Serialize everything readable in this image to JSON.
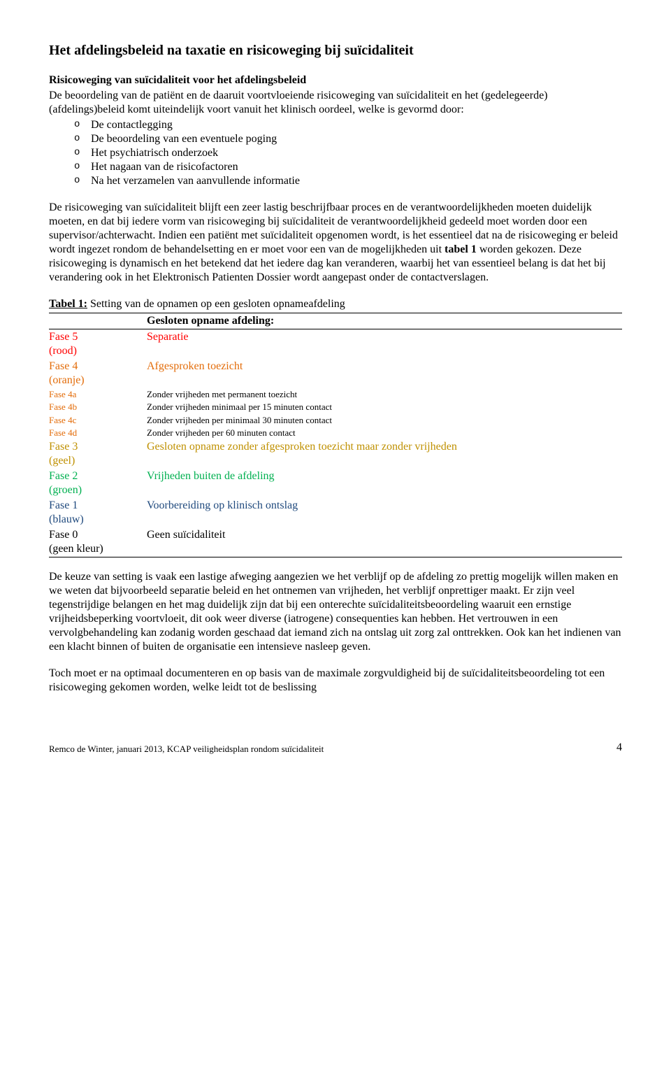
{
  "colors": {
    "red": "#ff0000",
    "orange": "#e36c09",
    "yellow": "#bf9000",
    "green": "#00b050",
    "blue": "#1f497d",
    "black": "#000000"
  },
  "title": "Het afdelingsbeleid na taxatie en risicoweging bij suïcidaliteit",
  "section1": {
    "heading": "Risicoweging van suïcidaliteit voor het afdelingsbeleid",
    "intro": "De beoordeling van de patiënt en de daaruit voortvloeiende risicoweging van suïcidaliteit en het (gedelegeerde) (afdelings)beleid komt uiteindelijk voort vanuit het klinisch oordeel, welke is gevormd door:",
    "bullets": [
      "De contactlegging",
      "De beoordeling van een eventuele poging",
      "Het psychiatrisch onderzoek",
      "Het nagaan van de risicofactoren",
      "Na het verzamelen van aanvullende informatie"
    ]
  },
  "para2_a": "De risicoweging van suïcidaliteit blijft een zeer lastig beschrijfbaar proces en de verantwoordelijkheden moeten duidelijk moeten, en dat bij iedere vorm van risicoweging bij suïcidaliteit de verantwoordelijkheid gedeeld moet worden door een supervisor/achterwacht. Indien een patiënt met suïcidaliteit opgenomen wordt, is het essentieel dat na de risicoweging er beleid wordt ingezet rondom de behandelsetting en er moet voor een van de mogelijkheden uit ",
  "para2_bold": "tabel 1",
  "para2_b": " worden gekozen. Deze risicoweging is dynamisch en het betekend dat het iedere dag kan veranderen, waarbij het van essentieel belang is dat het bij verandering ook in het Elektronisch Patienten Dossier wordt aangepast onder de contactverslagen.",
  "table": {
    "caption_prefix": "Tabel 1:",
    "caption": " Setting van de opnamen op een gesloten opnameafdeling",
    "header_right": "Gesloten opname afdeling:",
    "rows": [
      {
        "left": "Fase 5 (rood)",
        "right": "Separatie",
        "left_color": "red",
        "right_color": "red",
        "left_bold": true,
        "right_bold": true,
        "small": false
      },
      {
        "left": "Fase 4 (oranje)",
        "right": "Afgesproken toezicht",
        "left_color": "orange",
        "right_color": "orange",
        "left_bold": true,
        "right_bold": true,
        "small": false
      },
      {
        "left": "Fase 4a",
        "right": "Zonder vrijheden met permanent toezicht",
        "left_color": "orange",
        "right_color": "black",
        "left_bold": false,
        "right_bold": false,
        "small": true
      },
      {
        "left": "Fase 4b",
        "right": "Zonder vrijheden minimaal per 15 minuten contact",
        "left_color": "orange",
        "right_color": "black",
        "left_bold": false,
        "right_bold": false,
        "small": true
      },
      {
        "left": "Fase 4c",
        "right": "Zonder vrijheden per minimaal 30 minuten contact",
        "left_color": "orange",
        "right_color": "black",
        "left_bold": false,
        "right_bold": false,
        "small": true
      },
      {
        "left": "Fase 4d",
        "right": "Zonder vrijheden per 60 minuten contact",
        "left_color": "orange",
        "right_color": "black",
        "left_bold": false,
        "right_bold": false,
        "small": true
      },
      {
        "left": "Fase 3 (geel)",
        "right": "Gesloten opname zonder afgesproken toezicht maar zonder vrijheden",
        "left_color": "yellow",
        "right_color": "yellow",
        "left_bold": true,
        "right_bold": false,
        "small": false
      },
      {
        "left": "Fase 2 (groen)",
        "right": "Vrijheden buiten de afdeling",
        "left_color": "green",
        "right_color": "green",
        "left_bold": true,
        "right_bold": true,
        "small": false
      },
      {
        "left": "Fase 1 (blauw)",
        "right": "Voorbereiding op klinisch ontslag",
        "left_color": "blue",
        "right_color": "blue",
        "left_bold": true,
        "right_bold": true,
        "small": false
      },
      {
        "left": "Fase 0 (geen kleur)",
        "right": "Geen suïcidaliteit",
        "left_color": "black",
        "right_color": "black",
        "left_bold": true,
        "right_bold": true,
        "small": false
      }
    ]
  },
  "para3": "De keuze van setting is vaak een lastige afweging aangezien we het verblijf op de afdeling zo prettig mogelijk willen maken en we weten dat bijvoorbeeld separatie beleid en het ontnemen van vrijheden, het verblijf onprettiger maakt. Er zijn veel tegenstrijdige belangen en het mag duidelijk zijn dat bij een onterechte suïcidaliteitsbeoordeling waaruit een ernstige vrijheidsbeperking voortvloeit, dit ook weer diverse (iatrogene) consequenties kan hebben. Het vertrouwen in een vervolgbehandeling kan zodanig worden geschaad dat iemand zich na ontslag uit zorg zal onttrekken. Ook kan het indienen van een klacht binnen of buiten de organisatie een intensieve nasleep geven.",
  "para4": "Toch moet er na optimaal documenteren en op basis van de maximale zorgvuldigheid bij de suïcidaliteitsbeoordeling tot een risicoweging gekomen worden, welke leidt tot de beslissing",
  "footer": {
    "text": "Remco de Winter, januari 2013, KCAP veiligheidsplan rondom suïcidaliteit",
    "page": "4"
  }
}
